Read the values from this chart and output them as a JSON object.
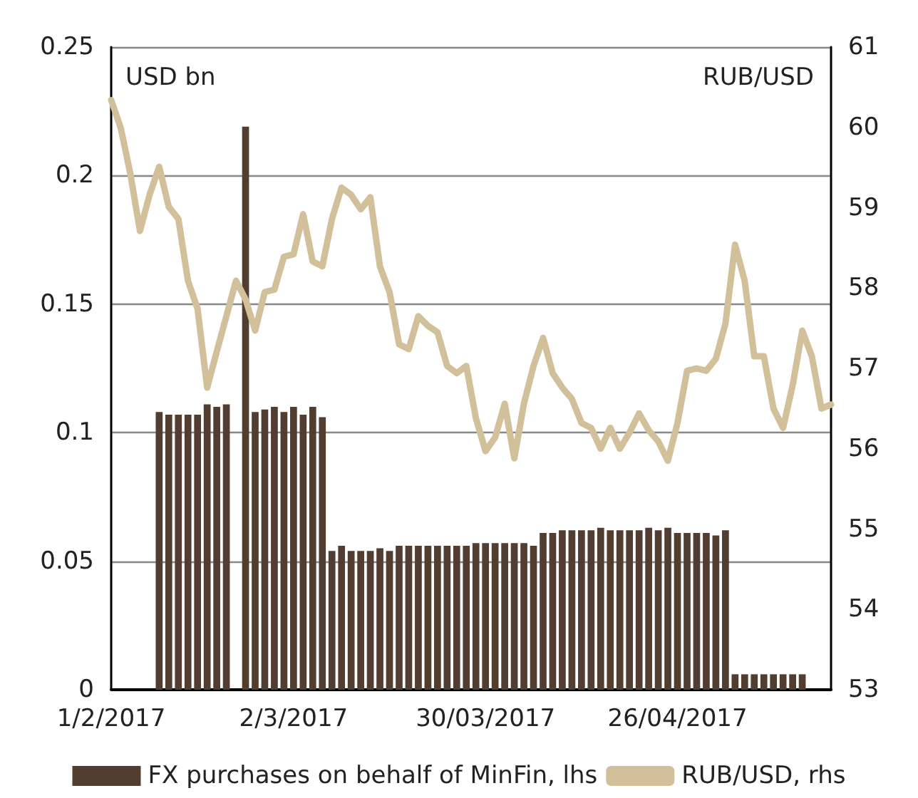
{
  "chart_data": {
    "type": "bar",
    "ylabel": "USD bn",
    "y2label": "RUB/USD",
    "categories": [
      "1/2/2017",
      null,
      null,
      null,
      null,
      null,
      null,
      null,
      null,
      null,
      null,
      null,
      null,
      null,
      null,
      null,
      null,
      null,
      null,
      "2/3/2017",
      null,
      null,
      null,
      null,
      null,
      null,
      null,
      null,
      null,
      null,
      null,
      null,
      null,
      null,
      null,
      null,
      null,
      null,
      null,
      "30/03/2017",
      null,
      null,
      null,
      null,
      null,
      null,
      null,
      null,
      null,
      null,
      null,
      null,
      null,
      null,
      null,
      null,
      null,
      null,
      null,
      "26/04/2017",
      null,
      null,
      null,
      null,
      null,
      null,
      null,
      null,
      null,
      null,
      null,
      null,
      null,
      null,
      null,
      null
    ],
    "series": [
      {
        "name": "FX purchases on behalf of MinFin, lhs",
        "color": "#513e31",
        "values": [
          null,
          null,
          null,
          null,
          null,
          0.108,
          0.107,
          0.107,
          0.107,
          0.107,
          0.111,
          0.11,
          0.111,
          null,
          0.219,
          0.108,
          0.109,
          0.11,
          0.108,
          0.11,
          0.107,
          0.11,
          0.106,
          0.054,
          0.056,
          0.054,
          0.054,
          0.054,
          0.055,
          0.054,
          0.056,
          0.056,
          0.056,
          0.056,
          0.056,
          0.056,
          0.056,
          0.056,
          0.057,
          0.057,
          0.057,
          0.057,
          0.057,
          0.057,
          0.056,
          0.061,
          0.061,
          0.062,
          0.062,
          0.062,
          0.062,
          0.063,
          0.062,
          0.062,
          0.062,
          0.062,
          0.063,
          0.062,
          0.063,
          0.061,
          0.061,
          0.061,
          0.061,
          0.06,
          0.062,
          0.006,
          0.006,
          0.006,
          0.006,
          0.006,
          0.006,
          0.006,
          0.006,
          null,
          null,
          null
        ]
      },
      {
        "name": "RUB/USD, rhs",
        "type": "line",
        "axis": "y2",
        "color": "#d2c09b",
        "values": [
          60.34,
          59.99,
          59.42,
          58.71,
          59.16,
          59.51,
          59.01,
          58.86,
          58.09,
          57.74,
          56.76,
          57.21,
          57.65,
          58.09,
          57.86,
          57.47,
          57.95,
          57.98,
          58.39,
          58.42,
          58.92,
          58.33,
          58.27,
          58.86,
          59.25,
          59.16,
          58.98,
          59.13,
          58.27,
          57.95,
          57.3,
          57.24,
          57.65,
          57.53,
          57.45,
          57.03,
          56.94,
          57.03,
          56.38,
          55.97,
          56.14,
          56.56,
          55.88,
          56.56,
          57.03,
          57.38,
          56.94,
          56.76,
          56.62,
          56.32,
          56.26,
          56.0,
          56.26,
          56.0,
          56.2,
          56.44,
          56.23,
          56.09,
          55.85,
          56.32,
          56.97,
          57.0,
          56.97,
          57.12,
          57.56,
          58.54,
          58.09,
          57.15,
          57.15,
          56.5,
          56.26,
          56.79,
          57.47,
          57.15,
          56.5,
          56.55
        ]
      }
    ],
    "ylim": [
      0,
      0.25
    ],
    "yticks": [
      0,
      0.05,
      0.1,
      0.15,
      0.2,
      0.25
    ],
    "y2lim": [
      53,
      61
    ],
    "y2ticks": [
      53,
      54,
      55,
      56,
      57,
      58,
      59,
      60,
      61
    ],
    "grid": "y",
    "legend": "bottom",
    "marker": "none"
  }
}
